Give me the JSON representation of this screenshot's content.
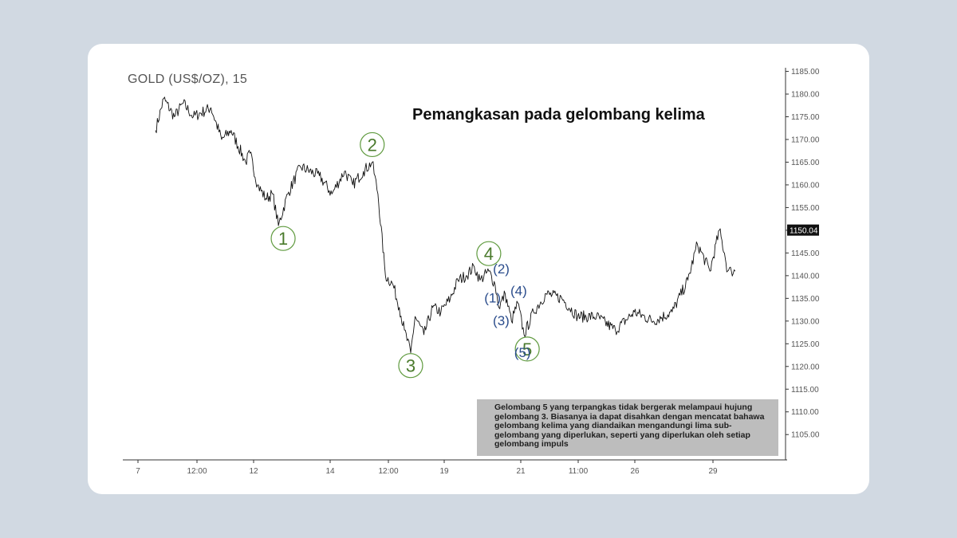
{
  "chart_data": {
    "type": "line",
    "symbol": "GOLD (US$/OZ), 15",
    "title": "Pemangkasan pada gelombang kelima",
    "x_ticks": [
      "7",
      "12:00",
      "12",
      "14",
      "12:00",
      "19",
      "21",
      "11:00",
      "26",
      "29"
    ],
    "y_ticks": [
      "1185.00",
      "1180.00",
      "1175.00",
      "1170.00",
      "1165.00",
      "1160.00",
      "1155.00",
      "1150.00",
      "1145.00",
      "1140.00",
      "1135.00",
      "1130.00",
      "1125.00",
      "1120.00",
      "1115.00",
      "1110.00",
      "1105.00"
    ],
    "ylim": [
      1101,
      1186.5
    ],
    "x_range": [
      0,
      100
    ],
    "current_price_label": "1150.04",
    "series": [
      {
        "x": [
          0,
          1.3,
          3,
          4.4,
          6,
          8.8,
          10.5,
          12,
          14.3,
          15,
          16.2,
          17.5,
          18.6,
          19.5,
          21,
          23,
          26,
          28,
          30,
          31.3,
          33,
          34.4,
          35.3,
          36.5,
          37.7,
          38.7,
          39.5,
          40.5,
          41.2,
          42.6,
          44,
          45.3,
          46.8,
          48,
          49.3,
          50.6,
          51.5,
          52.9,
          53.9,
          54.5,
          55.5,
          56.5,
          57.5,
          58.5,
          60,
          62,
          64.5,
          67,
          70,
          73,
          76,
          79,
          82,
          84.5,
          86,
          88,
          89.5,
          90.3,
          90.8,
          91.4,
          92
        ],
        "y": [
          1172,
          1179,
          1175,
          1178,
          1175,
          1177,
          1170,
          1172,
          1165,
          1167,
          1160,
          1157,
          1158,
          1151,
          1158,
          1164,
          1162,
          1158,
          1163,
          1160,
          1163,
          1165,
          1158,
          1140,
          1138,
          1133,
          1128,
          1123,
          1131,
          1127,
          1133,
          1132,
          1135,
          1139,
          1140,
          1142,
          1139,
          1141,
          1138,
          1133,
          1136,
          1130,
          1134,
          1127,
          1132,
          1136,
          1135,
          1131,
          1131,
          1128,
          1132,
          1130,
          1132,
          1139,
          1147,
          1141,
          1150.04,
          1145,
          1141,
          1141,
          1141
        ]
      }
    ],
    "wave_labels_major": [
      {
        "label": "1",
        "x": 19.5,
        "y": 1151
      },
      {
        "label": "2",
        "x": 34.4,
        "y": 1165
      },
      {
        "label": "3",
        "x": 40.5,
        "y": 1123
      },
      {
        "label": "4",
        "x": 52.9,
        "y": 1141
      },
      {
        "label": "5",
        "x": 58.5,
        "y": 1127
      }
    ],
    "wave_labels_minor": [
      {
        "label": "(2)",
        "x": 54.5,
        "y": 1140
      },
      {
        "label": "(1)",
        "x": 54,
        "y": 1135
      },
      {
        "label": "(4)",
        "x": 56.5,
        "y": 1136
      },
      {
        "label": "(3)",
        "x": 55.5,
        "y": 1130
      },
      {
        "label": "(5)",
        "x": 58,
        "y": 1127
      }
    ],
    "annotation": "Gelombang 5 yang terpangkas tidak bergerak melampaui hujung gelombang 3. Biasanya ia dapat disahkan dengan mencatat bahawa gelombang kelima yang diandaikan mengandungi lima sub-gelombang yang diperlukan, seperti yang diperlukan oleh setiap gelombang impuls",
    "colors": {
      "price_line": "#111111",
      "major_wave": "#4a7a2c",
      "major_circle": "#5f9a3e",
      "minor_wave": "#2b4d8c",
      "annotation_bg": "#bdbdbd",
      "price_tag_bg": "#111111",
      "axis": "#333333"
    }
  }
}
